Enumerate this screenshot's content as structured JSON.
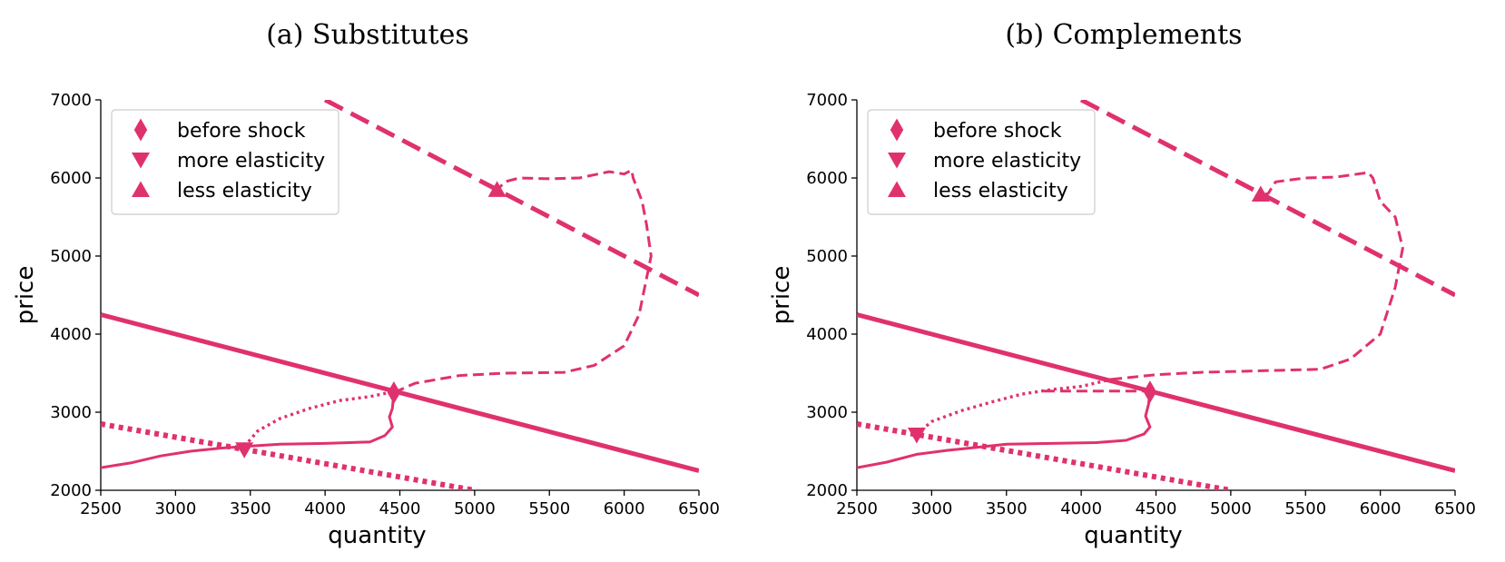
{
  "colors": {
    "accent": "#e0316f",
    "axis": "#000000",
    "legend_border": "#cccccc"
  },
  "chart_data": [
    {
      "type": "line",
      "title": "(a) Substitutes",
      "xlabel": "quantity",
      "ylabel": "price",
      "xlim": [
        2500,
        6500
      ],
      "ylim": [
        2000,
        7000
      ],
      "xticks": [
        2500,
        3000,
        3500,
        4000,
        4500,
        5000,
        5500,
        6000,
        6500
      ],
      "yticks": [
        2000,
        3000,
        4000,
        5000,
        6000,
        7000
      ],
      "grid": false,
      "legend_position": "top-left",
      "legend": [
        {
          "label": "before shock",
          "marker": "diamond"
        },
        {
          "label": "more elasticity",
          "marker": "triangle-down"
        },
        {
          "label": "less elasticity",
          "marker": "triangle-up"
        }
      ],
      "lines": [
        {
          "style": "solid",
          "x": [
            2500,
            6500
          ],
          "y": [
            4250,
            2250
          ]
        },
        {
          "style": "dotted",
          "x": [
            2500,
            5000
          ],
          "y": [
            2850,
            2000
          ]
        },
        {
          "style": "dashed",
          "x": [
            4000,
            6500
          ],
          "y": [
            7000,
            4500
          ]
        }
      ],
      "paths": [
        {
          "style": "solid",
          "points": [
            [
              2500,
              2290
            ],
            [
              2700,
              2350
            ],
            [
              2900,
              2440
            ],
            [
              3100,
              2500
            ],
            [
              3300,
              2540
            ],
            [
              3460,
              2560
            ],
            [
              3700,
              2590
            ],
            [
              4000,
              2600
            ],
            [
              4300,
              2620
            ],
            [
              4400,
              2700
            ],
            [
              4450,
              2810
            ],
            [
              4430,
              2940
            ],
            [
              4450,
              3050
            ],
            [
              4460,
              3250
            ]
          ]
        },
        {
          "style": "dotted",
          "points": [
            [
              3460,
              2560
            ],
            [
              3550,
              2760
            ],
            [
              3700,
              2920
            ],
            [
              3900,
              3050
            ],
            [
              4100,
              3150
            ],
            [
              4300,
              3200
            ],
            [
              4450,
              3260
            ]
          ]
        },
        {
          "style": "dashed",
          "points": [
            [
              4460,
              3250
            ],
            [
              4600,
              3370
            ],
            [
              4900,
              3470
            ],
            [
              5200,
              3500
            ],
            [
              5600,
              3510
            ],
            [
              5800,
              3600
            ],
            [
              6000,
              3850
            ],
            [
              6100,
              4250
            ],
            [
              6180,
              5000
            ],
            [
              6150,
              5400
            ],
            [
              6120,
              5700
            ],
            [
              6060,
              6000
            ],
            [
              6050,
              6100
            ],
            [
              6000,
              6050
            ],
            [
              5900,
              6080
            ],
            [
              5700,
              6000
            ],
            [
              5500,
              5990
            ],
            [
              5300,
              6000
            ],
            [
              5200,
              5950
            ],
            [
              5150,
              5840
            ]
          ]
        }
      ],
      "markers": [
        {
          "label": "before shock",
          "marker": "diamond",
          "x": 4460,
          "y": 3250
        },
        {
          "label": "more elasticity",
          "marker": "triangle-down",
          "x": 3460,
          "y": 2520
        },
        {
          "label": "less elasticity",
          "marker": "triangle-up",
          "x": 5150,
          "y": 5850
        }
      ]
    },
    {
      "type": "line",
      "title": "(b) Complements",
      "xlabel": "quantity",
      "ylabel": "price",
      "xlim": [
        2500,
        6500
      ],
      "ylim": [
        2000,
        7000
      ],
      "xticks": [
        2500,
        3000,
        3500,
        4000,
        4500,
        5000,
        5500,
        6000,
        6500
      ],
      "yticks": [
        2000,
        3000,
        4000,
        5000,
        6000,
        7000
      ],
      "grid": false,
      "legend_position": "top-left",
      "legend": [
        {
          "label": "before shock",
          "marker": "diamond"
        },
        {
          "label": "more elasticity",
          "marker": "triangle-down"
        },
        {
          "label": "less elasticity",
          "marker": "triangle-up"
        }
      ],
      "lines": [
        {
          "style": "solid",
          "x": [
            2500,
            6500
          ],
          "y": [
            4250,
            2250
          ]
        },
        {
          "style": "dotted",
          "x": [
            2500,
            5000
          ],
          "y": [
            2850,
            2000
          ]
        },
        {
          "style": "dashed",
          "x": [
            4000,
            6500
          ],
          "y": [
            7000,
            4500
          ]
        }
      ],
      "paths": [
        {
          "style": "solid",
          "points": [
            [
              2500,
              2290
            ],
            [
              2700,
              2360
            ],
            [
              2900,
              2460
            ],
            [
              3100,
              2510
            ],
            [
              3300,
              2550
            ],
            [
              3500,
              2590
            ],
            [
              3800,
              2600
            ],
            [
              4100,
              2610
            ],
            [
              4300,
              2640
            ],
            [
              4420,
              2720
            ],
            [
              4460,
              2810
            ],
            [
              4430,
              2950
            ],
            [
              4450,
              3100
            ],
            [
              4460,
              3260
            ]
          ]
        },
        {
          "style": "dotted",
          "points": [
            [
              2900,
              2720
            ],
            [
              3000,
              2880
            ],
            [
              3200,
              3020
            ],
            [
              3400,
              3130
            ],
            [
              3600,
              3230
            ],
            [
              3800,
              3290
            ],
            [
              4000,
              3330
            ],
            [
              4200,
              3420
            ]
          ]
        },
        {
          "style": "dashed",
          "points": [
            [
              3750,
              3270
            ],
            [
              4460,
              3270
            ]
          ]
        },
        {
          "style": "dashed",
          "points": [
            [
              4200,
              3420
            ],
            [
              4500,
              3480
            ],
            [
              4800,
              3510
            ],
            [
              5200,
              3530
            ],
            [
              5600,
              3550
            ],
            [
              5800,
              3680
            ],
            [
              6000,
              4000
            ],
            [
              6100,
              4600
            ],
            [
              6150,
              5100
            ],
            [
              6100,
              5500
            ],
            [
              6000,
              5700
            ],
            [
              5950,
              6000
            ],
            [
              5920,
              6070
            ],
            [
              5850,
              6050
            ],
            [
              5700,
              6010
            ],
            [
              5500,
              6000
            ],
            [
              5300,
              5950
            ],
            [
              5250,
              5800
            ],
            [
              5200,
              5780
            ]
          ]
        }
      ],
      "markers": [
        {
          "label": "before shock",
          "marker": "diamond",
          "x": 4460,
          "y": 3260
        },
        {
          "label": "more elasticity",
          "marker": "triangle-down",
          "x": 2900,
          "y": 2710
        },
        {
          "label": "less elasticity",
          "marker": "triangle-up",
          "x": 5200,
          "y": 5790
        }
      ]
    }
  ]
}
